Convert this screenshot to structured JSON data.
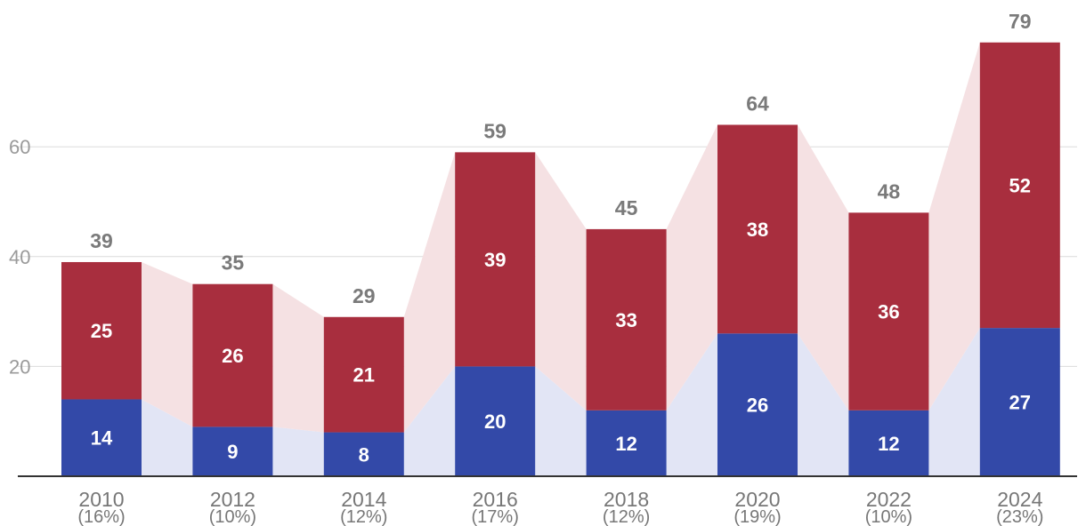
{
  "chart_data": {
    "type": "bar",
    "stacked": true,
    "title": "",
    "xlabel": "",
    "ylabel": "",
    "categories": [
      "2010",
      "2012",
      "2014",
      "2016",
      "2018",
      "2020",
      "2022",
      "2024"
    ],
    "category_sublabels": [
      "(16%)",
      "(10%)",
      "(12%)",
      "(17%)",
      "(12%)",
      "(19%)",
      "(10%)",
      "(23%)"
    ],
    "series": [
      {
        "name": "bottom",
        "color": "#3349a8",
        "area_color": "#e2e5f5",
        "values": [
          14,
          9,
          8,
          20,
          12,
          26,
          12,
          27
        ]
      },
      {
        "name": "top",
        "color": "#a82e3e",
        "area_color": "#f5e1e3",
        "values": [
          25,
          26,
          21,
          39,
          33,
          38,
          36,
          52
        ]
      }
    ],
    "totals": [
      39,
      35,
      29,
      59,
      45,
      64,
      48,
      79
    ],
    "y_ticks": [
      20,
      40,
      60
    ],
    "ylim": [
      0,
      82
    ],
    "grid": true,
    "connector_areas": true
  }
}
